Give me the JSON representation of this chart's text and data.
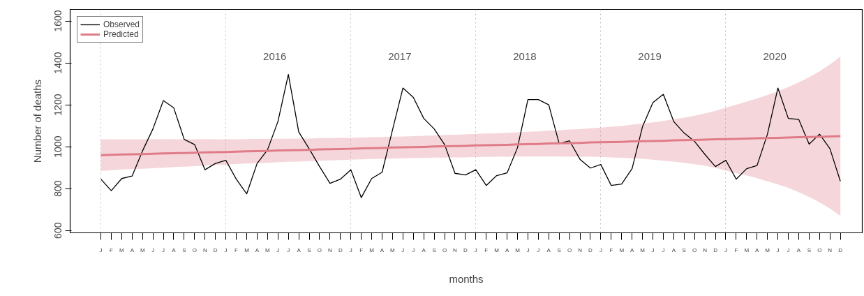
{
  "chart_data": {
    "type": "line",
    "xlabel": "months",
    "ylabel": "Number of deaths",
    "categories": [
      "J",
      "F",
      "M",
      "A",
      "M",
      "J",
      "J",
      "A",
      "S",
      "O",
      "N",
      "D",
      "J",
      "F",
      "M",
      "A",
      "M",
      "J",
      "J",
      "A",
      "S",
      "O",
      "N",
      "D",
      "J",
      "F",
      "M",
      "A",
      "M",
      "J",
      "J",
      "A",
      "S",
      "O",
      "N",
      "D",
      "J",
      "F",
      "M",
      "A",
      "M",
      "J",
      "J",
      "A",
      "S",
      "O",
      "N",
      "D",
      "J",
      "F",
      "M",
      "A",
      "M",
      "J",
      "J",
      "A",
      "S",
      "O",
      "N",
      "D",
      "J",
      "F",
      "M",
      "A",
      "M",
      "J",
      "J",
      "A",
      "S",
      "O",
      "N",
      "D"
    ],
    "ylim": [
      589,
      1655
    ],
    "yticks": [
      600,
      800,
      1000,
      1200,
      1400,
      1600
    ],
    "grid": "x",
    "legend": "top left",
    "line_style": "solid",
    "marker": "none",
    "series": [
      {
        "name": "Observed",
        "color": "#000000",
        "values": [
          845,
          790,
          848,
          860,
          980,
          1085,
          1220,
          1185,
          1035,
          1010,
          890,
          920,
          935,
          845,
          775,
          920,
          985,
          1120,
          1345,
          1070,
          990,
          905,
          825,
          845,
          890,
          757,
          848,
          878,
          1080,
          1280,
          1235,
          1135,
          1085,
          1010,
          873,
          865,
          890,
          815,
          862,
          875,
          995,
          1225,
          1225,
          1200,
          1015,
          1028,
          940,
          898,
          915,
          815,
          822,
          895,
          1095,
          1210,
          1250,
          1120,
          1065,
          1025,
          963,
          905,
          935,
          845,
          895,
          910,
          1060,
          1280,
          1135,
          1130,
          1012,
          1060,
          990,
          835
        ]
      },
      {
        "name": "Predicted",
        "color": "#df7c88",
        "values": [
          960,
          961,
          963,
          964,
          965,
          966,
          968,
          969,
          970,
          971,
          973,
          974,
          975,
          976,
          978,
          979,
          980,
          982,
          983,
          984,
          985,
          987,
          988,
          989,
          990,
          992,
          993,
          994,
          996,
          997,
          998,
          999,
          1001,
          1002,
          1003,
          1004,
          1006,
          1007,
          1008,
          1009,
          1011,
          1012,
          1013,
          1015,
          1016,
          1017,
          1018,
          1020,
          1021,
          1022,
          1023,
          1025,
          1026,
          1027,
          1028,
          1030,
          1031,
          1032,
          1034,
          1035,
          1036,
          1037,
          1039,
          1040,
          1041,
          1042,
          1044,
          1045,
          1046,
          1047,
          1049,
          1050
        ],
        "lower": [
          885,
          887,
          891,
          893,
          895,
          897,
          900,
          903,
          905,
          907,
          910,
          913,
          915,
          917,
          920,
          921,
          923,
          926,
          928,
          929,
          931,
          933,
          935,
          936,
          938,
          940,
          941,
          942,
          944,
          945,
          946,
          946,
          948,
          948,
          949,
          949,
          951,
          951,
          952,
          952,
          953,
          953,
          953,
          953,
          953,
          952,
          952,
          952,
          951,
          949,
          947,
          945,
          942,
          938,
          933,
          929,
          923,
          916,
          909,
          899,
          886,
          874,
          863,
          850,
          835,
          820,
          804,
          783,
          760,
          735,
          705,
          670
        ],
        "upper": [
          1035,
          1035,
          1035,
          1035,
          1035,
          1035,
          1036,
          1035,
          1035,
          1035,
          1036,
          1035,
          1035,
          1035,
          1036,
          1037,
          1037,
          1038,
          1038,
          1039,
          1039,
          1041,
          1041,
          1042,
          1042,
          1044,
          1045,
          1046,
          1048,
          1049,
          1050,
          1052,
          1054,
          1056,
          1057,
          1059,
          1061,
          1063,
          1064,
          1066,
          1069,
          1071,
          1073,
          1077,
          1079,
          1082,
          1084,
          1088,
          1091,
          1095,
          1099,
          1105,
          1110,
          1116,
          1123,
          1131,
          1139,
          1148,
          1159,
          1171,
          1186,
          1200,
          1215,
          1230,
          1247,
          1264,
          1284,
          1307,
          1332,
          1359,
          1393,
          1430
        ]
      }
    ],
    "annotations": [
      "2016",
      "2017",
      "2018",
      "2019",
      "2020"
    ]
  }
}
